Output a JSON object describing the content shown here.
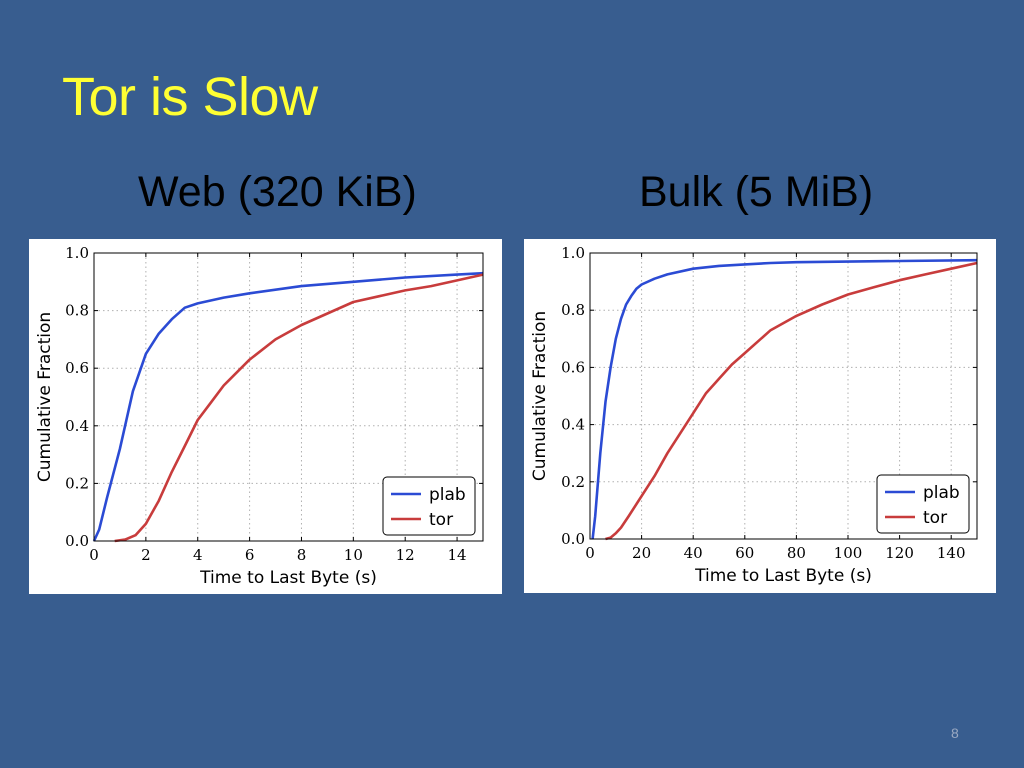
{
  "slide": {
    "title": "Tor is Slow",
    "page_number": "8"
  },
  "colors": {
    "background": "#385d8f",
    "title": "#ffff33",
    "plab": "#2b4bd4",
    "tor": "#c83c3c"
  },
  "chart_data": [
    {
      "heading": "Web (320 KiB)",
      "type": "line",
      "xlabel": "Time to Last Byte (s)",
      "ylabel": "Cumulative Fraction",
      "xlim": [
        0,
        15
      ],
      "ylim": [
        0,
        1
      ],
      "xticks": [
        0,
        2,
        4,
        6,
        8,
        10,
        12,
        14
      ],
      "yticks": [
        0.0,
        0.2,
        0.4,
        0.6,
        0.8,
        1.0
      ],
      "grid": true,
      "legend": "lower-right",
      "series": [
        {
          "name": "plab",
          "color": "#2b4bd4",
          "x": [
            0,
            0.2,
            0.5,
            1.0,
            1.5,
            2.0,
            2.5,
            3.0,
            3.5,
            4.0,
            5.0,
            6.0,
            8.0,
            10.0,
            12.0,
            14.0,
            15.0
          ],
          "y": [
            0.0,
            0.04,
            0.15,
            0.32,
            0.52,
            0.65,
            0.72,
            0.77,
            0.81,
            0.825,
            0.845,
            0.86,
            0.885,
            0.9,
            0.915,
            0.925,
            0.93
          ]
        },
        {
          "name": "tor",
          "color": "#c83c3c",
          "x": [
            0.8,
            1.2,
            1.6,
            2.0,
            2.5,
            3.0,
            3.5,
            4.0,
            4.5,
            5.0,
            6.0,
            7.0,
            8.0,
            9.0,
            10.0,
            11.0,
            12.0,
            13.0,
            14.0,
            15.0
          ],
          "y": [
            0.0,
            0.005,
            0.02,
            0.06,
            0.14,
            0.24,
            0.33,
            0.42,
            0.48,
            0.54,
            0.63,
            0.7,
            0.75,
            0.79,
            0.83,
            0.85,
            0.87,
            0.885,
            0.905,
            0.925
          ]
        }
      ]
    },
    {
      "heading": "Bulk (5 MiB)",
      "type": "line",
      "xlabel": "Time to Last Byte (s)",
      "ylabel": "Cumulative Fraction",
      "xlim": [
        0,
        150
      ],
      "ylim": [
        0,
        1
      ],
      "xticks": [
        0,
        20,
        40,
        60,
        80,
        100,
        120,
        140
      ],
      "yticks": [
        0.0,
        0.2,
        0.4,
        0.6,
        0.8,
        1.0
      ],
      "grid": true,
      "legend": "lower-right",
      "series": [
        {
          "name": "plab",
          "color": "#2b4bd4",
          "x": [
            1,
            2,
            4,
            6,
            8,
            10,
            12,
            14,
            16,
            18,
            20,
            25,
            30,
            40,
            50,
            60,
            70,
            80,
            100,
            120,
            150
          ],
          "y": [
            0.0,
            0.08,
            0.3,
            0.48,
            0.6,
            0.7,
            0.77,
            0.82,
            0.85,
            0.875,
            0.89,
            0.91,
            0.925,
            0.945,
            0.955,
            0.96,
            0.965,
            0.968,
            0.97,
            0.972,
            0.975
          ]
        },
        {
          "name": "tor",
          "color": "#c83c3c",
          "x": [
            6,
            8,
            10,
            12,
            15,
            20,
            25,
            30,
            35,
            40,
            45,
            50,
            55,
            60,
            70,
            80,
            90,
            100,
            110,
            120,
            130,
            140,
            150
          ],
          "y": [
            0.0,
            0.005,
            0.02,
            0.04,
            0.08,
            0.15,
            0.22,
            0.3,
            0.37,
            0.44,
            0.51,
            0.56,
            0.61,
            0.65,
            0.73,
            0.78,
            0.82,
            0.855,
            0.88,
            0.905,
            0.925,
            0.945,
            0.965
          ]
        }
      ]
    }
  ]
}
